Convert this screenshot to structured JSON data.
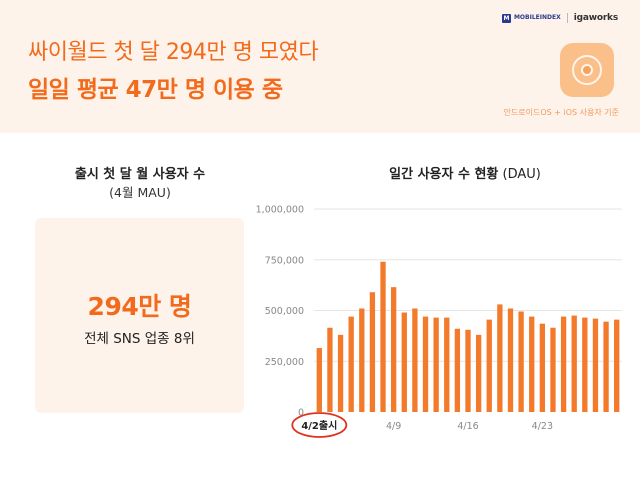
{
  "header": {
    "title_line1": "싸이월드 첫 달 294만 명 모였다",
    "title_line2": "일일 평균 47만 명 이용 중",
    "logo_mobileindex_mark": "M",
    "logo_mobileindex": "MOBILEINDEX",
    "logo_igaworks": "igaworks",
    "source_note": "안드로이드OS + iOS 사용자 기준"
  },
  "mau_panel": {
    "title": "출시 첫 달 월 사용자 수",
    "subtitle": "(4월 MAU)",
    "value": "294만 명",
    "description": "전체 SNS 업종 8위"
  },
  "dau_panel": {
    "title_bold": "일간 사용자 수 현황",
    "title_suffix": "(DAU)"
  },
  "colors": {
    "accent": "#f26a1b",
    "bar": "#f27a2a",
    "panel_bg": "#fdf3ea",
    "grid": "#e6e6e6",
    "launch_circle": "#e0321e"
  },
  "chart_data": {
    "type": "bar",
    "x": [
      "4/2",
      "4/3",
      "4/4",
      "4/5",
      "4/6",
      "4/7",
      "4/8",
      "4/9",
      "4/10",
      "4/11",
      "4/12",
      "4/13",
      "4/14",
      "4/15",
      "4/16",
      "4/17",
      "4/18",
      "4/19",
      "4/20",
      "4/21",
      "4/22",
      "4/23",
      "4/24",
      "4/25",
      "4/26",
      "4/27",
      "4/28",
      "4/29",
      "4/30"
    ],
    "x_tick_labels": [
      "4/2출시",
      "4/9",
      "4/16",
      "4/23"
    ],
    "values": [
      315000,
      415000,
      380000,
      470000,
      510000,
      590000,
      740000,
      615000,
      490000,
      510000,
      470000,
      465000,
      465000,
      410000,
      405000,
      380000,
      455000,
      530000,
      510000,
      495000,
      470000,
      435000,
      415000,
      470000,
      475000,
      465000,
      460000,
      445000,
      455000
    ],
    "y_tick_labels": [
      "1,000,000",
      "750,000",
      "500,000",
      "250,000",
      "0"
    ],
    "ylim": [
      0,
      1000000
    ],
    "grid": true,
    "launch_marker": "4/2출시"
  }
}
